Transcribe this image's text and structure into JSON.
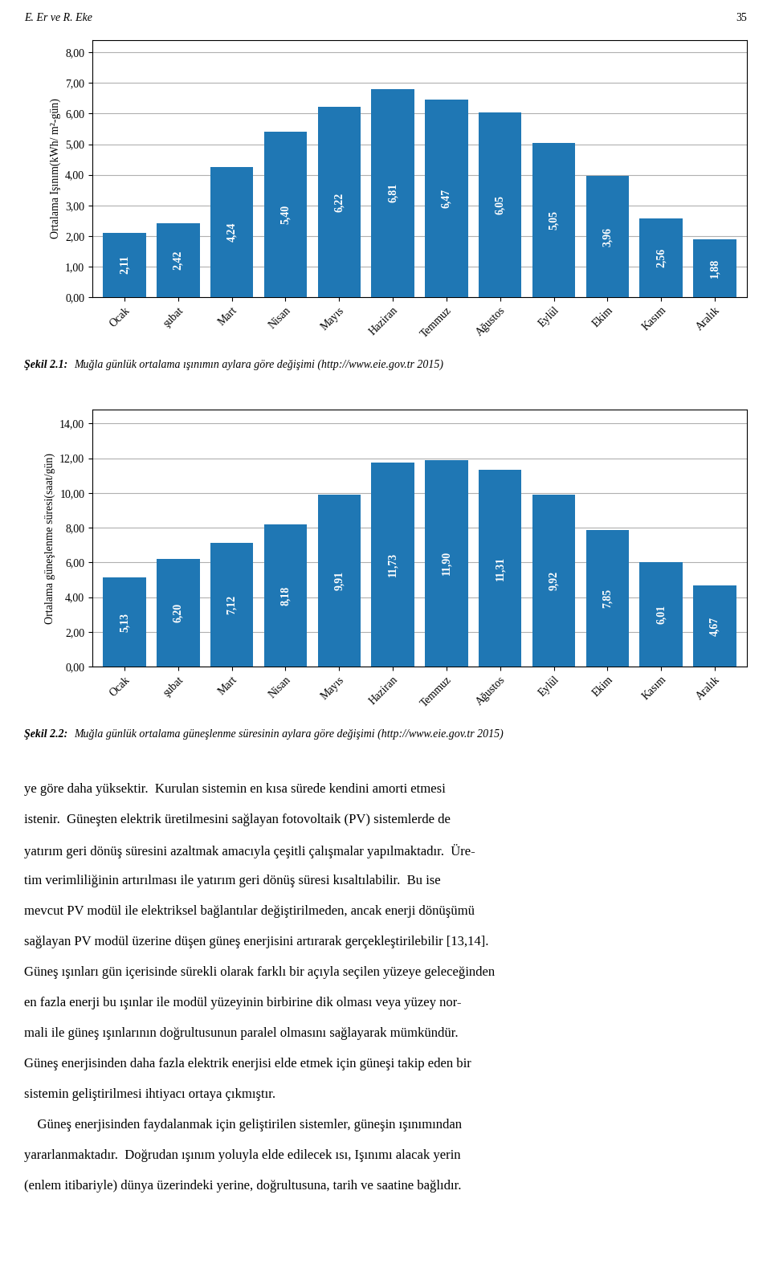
{
  "header": [
    "E. Er ve R. Eke",
    "35"
  ],
  "chart_data": [
    {
      "type": "bar",
      "categories": [
        "Ocak",
        "şubat",
        "Mart",
        "Nisan",
        "Mayıs",
        "Haziran",
        "Temmuz",
        "Ağustos",
        "Eylül",
        "Ekim",
        "Kasım",
        "Aralık"
      ],
      "values": [
        2.11,
        2.42,
        4.24,
        5.4,
        6.22,
        6.81,
        6.47,
        6.05,
        5.05,
        3.96,
        2.56,
        1.88
      ],
      "value_labels": [
        "2,11",
        "2,42",
        "4,24",
        "5,40",
        "6,22",
        "6,81",
        "6,47",
        "6,05",
        "5,05",
        "3,96",
        "2,56",
        "1,88"
      ],
      "data_labels": true,
      "ylabel": "Ortalama Işınım(kWh/ m²-gün)",
      "ylim": [
        0.0,
        8.4
      ],
      "yticks": [
        {
          "value": 0.0,
          "label": "0,00"
        },
        {
          "value": 1.0,
          "label": "1,00"
        },
        {
          "value": 2.0,
          "label": "2,00"
        },
        {
          "value": 3.0,
          "label": "3,00"
        },
        {
          "value": 4.0,
          "label": "4,00"
        },
        {
          "value": 5.0,
          "label": "5,00"
        },
        {
          "value": 6.0,
          "label": "6,00"
        },
        {
          "value": 7.0,
          "label": "7,00"
        },
        {
          "value": 8.0,
          "label": "8,00"
        }
      ],
      "grid": "y",
      "annotations": [
        "Şekil 2.1:",
        "Muğla günlük ortalama ışınımın aylara göre değişimi (http://www.eie.gov.tr 2015)"
      ]
    },
    {
      "type": "bar",
      "categories": [
        "Ocak",
        "şubat",
        "Mart",
        "Nisan",
        "Mayıs",
        "Haziran",
        "Temmuz",
        "Ağustos",
        "Eylül",
        "Ekim",
        "Kasım",
        "Aralık"
      ],
      "values": [
        5.13,
        6.2,
        7.12,
        8.18,
        9.91,
        11.73,
        11.9,
        11.31,
        9.92,
        7.85,
        6.01,
        4.67
      ],
      "value_labels": [
        "5,13",
        "6,20",
        "7,12",
        "8,18",
        "9,91",
        "11,73",
        "11,90",
        "11,31",
        "9,92",
        "7,85",
        "6,01",
        "4,67"
      ],
      "data_labels": true,
      "ylabel": "Ortalama güneşlenme süresi(saat/gün)",
      "ylim": [
        0.0,
        14.8
      ],
      "yticks": [
        {
          "value": 0.0,
          "label": "0,00"
        },
        {
          "value": 2.0,
          "label": "2,00"
        },
        {
          "value": 4.0,
          "label": "4,00"
        },
        {
          "value": 6.0,
          "label": "6,00"
        },
        {
          "value": 8.0,
          "label": "8,00"
        },
        {
          "value": 10.0,
          "label": "10,00"
        },
        {
          "value": 12.0,
          "label": "12,00"
        },
        {
          "value": 14.0,
          "label": "14,00"
        }
      ],
      "grid": "y",
      "annotations": [
        "Şekil 2.2:",
        "Muğla günlük ortalama güneşlenme süresinin aylara göre değişimi (http://www.eie.gov.tr 2015)"
      ]
    }
  ],
  "body_text": [
    "ye göre daha yüksektir.  Kurulan sistemin en kısa sürede kendini amorti etmesi",
    "istenir.  Güneşten elektrik üretilmesini sağlayan fotovoltaik (PV) sistemlerde de",
    "yatırım geri dönüş süresini azaltmak amacıyla çeşitli çalışmalar yapılmaktadır.  Üre-",
    "tim verimliliğinin artırılması ile yatırım geri dönüş süresi kısaltılabilir.  Bu ise",
    "mevcut PV modül ile elektriksel bağlantılar değiştirilmeden, ancak enerji dönüşümü",
    "sağlayan PV modül üzerine düşen güneş enerjisini artırarak gerçekleştirilebilir [13,14].",
    "Güneş ışınları gün içerisinde sürekli olarak farklı bir açıyla seçilen yüzeye geleceğinden",
    "en fazla enerji bu ışınlar ile modül yüzeyinin birbirine dik olması veya yüzey nor-",
    "mali ile güneş ışınlarının doğrultusunun paralel olmasını sağlayarak mümkündür.",
    "Güneş enerjisinden daha fazla elektrik enerjisi elde etmek için güneşi takip eden bir",
    "sistemin geliştirilmesi ihtiyacı ortaya çıkmıştır.",
    "    Güneş enerjisinden faydalanmak için geliştirilen sistemler, güneşin ışınımından",
    "yararlanmaktadır.  Doğrudan ışınım yoluyla elde edilecek ısı, Işınımı alacak yerin",
    "(enlem itibariyle) dünya üzerindeki yerine, doğrultusuna, tarih ve saatine bağlıdır."
  ]
}
